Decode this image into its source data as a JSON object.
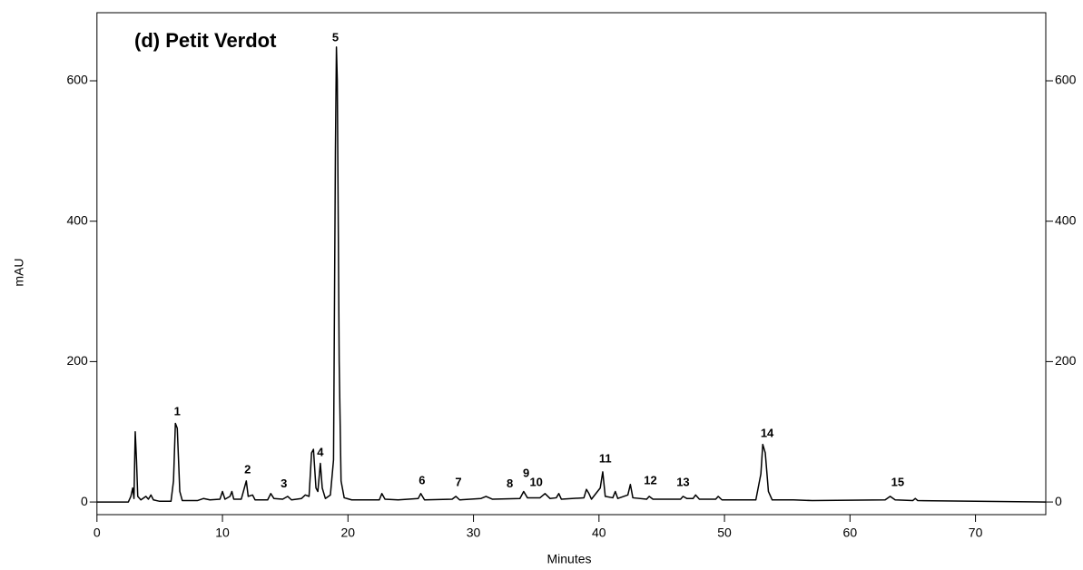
{
  "chart_data": {
    "type": "line",
    "title": "(d) Petit Verdot",
    "x_label": "Minutes",
    "y_label": "mAU",
    "x": [
      0,
      2.5,
      2.7,
      2.85,
      2.95,
      3.05,
      3.15,
      3.25,
      3.5,
      3.9,
      4.1,
      4.3,
      4.5,
      5,
      5.9,
      6.1,
      6.25,
      6.4,
      6.6,
      6.8,
      8,
      8.5,
      9,
      9.8,
      10,
      10.2,
      10.6,
      10.75,
      10.9,
      11.5,
      11.9,
      12.05,
      12.4,
      12.6,
      13.6,
      13.85,
      14.1,
      14.8,
      15.2,
      15.5,
      16.3,
      16.6,
      16.9,
      17.1,
      17.25,
      17.45,
      17.6,
      17.8,
      17.95,
      18.2,
      18.6,
      18.85,
      19.0,
      19.08,
      19.15,
      19.3,
      19.45,
      19.7,
      20.3,
      22.5,
      22.7,
      22.95,
      24,
      25.6,
      25.8,
      26.1,
      28.3,
      28.6,
      28.9,
      30.6,
      31,
      31.5,
      33.7,
      34,
      34.3,
      35.3,
      35.7,
      36.1,
      36.6,
      36.8,
      37,
      38.8,
      39,
      39.2,
      39.4,
      40.1,
      40.3,
      40.5,
      41.1,
      41.3,
      41.5,
      42.3,
      42.5,
      42.7,
      43.8,
      44,
      44.3,
      46.5,
      46.7,
      47,
      47.5,
      47.7,
      48,
      49.3,
      49.5,
      49.8,
      52.5,
      52.9,
      53.05,
      53.25,
      53.5,
      53.8,
      55.5,
      57,
      62.8,
      63.2,
      63.6,
      65,
      65.2,
      65.4,
      70,
      75.6
    ],
    "values": [
      0,
      0,
      8,
      20,
      5,
      100,
      60,
      8,
      3,
      8,
      4,
      10,
      3,
      1,
      1,
      30,
      112,
      105,
      15,
      2,
      2,
      5,
      3,
      4,
      15,
      4,
      8,
      15,
      4,
      4,
      30,
      8,
      10,
      3,
      3,
      12,
      5,
      4,
      8,
      3,
      5,
      10,
      8,
      70,
      75,
      20,
      15,
      55,
      20,
      5,
      10,
      60,
      500,
      648,
      600,
      200,
      30,
      6,
      3,
      3,
      12,
      4,
      3,
      5,
      12,
      3,
      4,
      8,
      3,
      5,
      8,
      4,
      5,
      15,
      6,
      6,
      12,
      5,
      6,
      12,
      4,
      6,
      18,
      12,
      4,
      20,
      43,
      8,
      6,
      15,
      5,
      10,
      25,
      6,
      4,
      8,
      4,
      4,
      8,
      5,
      5,
      10,
      4,
      4,
      8,
      3,
      3,
      40,
      82,
      70,
      15,
      3,
      3,
      2,
      3,
      8,
      3,
      2,
      5,
      2,
      1,
      0
    ],
    "color": "#000000",
    "xlim": [
      0,
      75.6
    ],
    "xticks": [
      0,
      10,
      20,
      30,
      40,
      50,
      60,
      70
    ],
    "ylim": [
      -18,
      697
    ],
    "yticks": [
      0,
      200,
      400,
      600
    ],
    "y2lim": [
      -18,
      697
    ],
    "y2ticks": [
      0,
      200,
      400,
      600
    ],
    "annotations": [
      {
        "text": "1",
        "x": 6.4,
        "y": 128
      },
      {
        "text": "2",
        "x": 12.0,
        "y": 45
      },
      {
        "text": "3",
        "x": 14.9,
        "y": 25
      },
      {
        "text": "4",
        "x": 17.8,
        "y": 70
      },
      {
        "text": "5",
        "x": 19.0,
        "y": 661
      },
      {
        "text": "6",
        "x": 25.9,
        "y": 30
      },
      {
        "text": "7",
        "x": 28.8,
        "y": 27
      },
      {
        "text": "8",
        "x": 32.9,
        "y": 25
      },
      {
        "text": "9",
        "x": 34.2,
        "y": 40
      },
      {
        "text": "10",
        "x": 35.0,
        "y": 27
      },
      {
        "text": "11",
        "x": 40.5,
        "y": 61
      },
      {
        "text": "12",
        "x": 44.1,
        "y": 30
      },
      {
        "text": "13",
        "x": 46.7,
        "y": 27
      },
      {
        "text": "14",
        "x": 53.4,
        "y": 97
      },
      {
        "text": "15",
        "x": 63.8,
        "y": 27
      }
    ]
  }
}
